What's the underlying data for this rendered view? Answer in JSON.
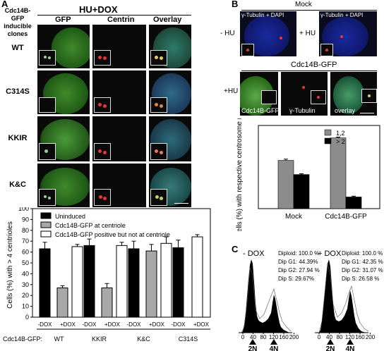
{
  "panelA": {
    "label": "A",
    "title": "HU+DOX",
    "row_header": "Cdc14B-GFP inducible clones",
    "col_headers": [
      "GFP",
      "Centrin",
      "Overlay"
    ],
    "rows": [
      "WT",
      "C314S",
      "KKIR",
      "K&C"
    ]
  },
  "panelB": {
    "label": "B",
    "mock_title": "Mock",
    "mock_stain": "γ-Tubulin + DAPI",
    "minus_hu": "- HU",
    "plus_hu": "+ HU",
    "gfp_title": "Cdc14B-GFP",
    "plus_hu2": "+HU",
    "captions": [
      "Cdc14B-GFP",
      "γ-Tubulin",
      "overlay"
    ]
  },
  "panelC": {
    "label": "C",
    "minus_dox": "- DOX",
    "plus_dox": "+ DOX",
    "stats_minus": [
      "Diploid: 100.0 %",
      "Dip G1: 44.39%",
      "Dip G2: 27.94 %",
      "Dip S: 29.67%"
    ],
    "stats_plus": [
      "Diploid: 100.0 %",
      "Dip G1: 42.35 %",
      "Dip G2: 31.07 %",
      "Dip S: 26.58 %"
    ],
    "ticks": [
      "0",
      "40",
      "80",
      "120",
      "160",
      "200"
    ],
    "marks": [
      "2N",
      "4N"
    ]
  },
  "chart_data": [
    {
      "type": "bar",
      "id": "centriole-chart",
      "ylabel": "Cells (%) with > 4 centrioles",
      "ylim": [
        0,
        100
      ],
      "yticks": [
        0,
        10,
        20,
        30,
        40,
        50,
        60,
        70,
        80,
        90,
        100
      ],
      "xlabel_prefix": "Cdc14B-GFP:",
      "groups": [
        "WT",
        "KKIR",
        "K&C",
        "C314S"
      ],
      "conditions": [
        "-DOX",
        "+DOX"
      ],
      "legend": [
        "Uninduced",
        "Cdc14B-GFP at centriole",
        "Cdc14B-GFP positive but not at centriole"
      ],
      "colors": [
        "#000000",
        "#a8a8a8",
        "#ffffff"
      ],
      "bars": [
        {
          "group": "WT",
          "cond": "-DOX",
          "series": 0,
          "value": 63,
          "err": 6
        },
        {
          "group": "WT",
          "cond": "+DOX",
          "series": 1,
          "value": 27,
          "err": 2
        },
        {
          "group": "WT",
          "cond": "+DOX",
          "series": 2,
          "value": 65,
          "err": 2
        },
        {
          "group": "KKIR",
          "cond": "-DOX",
          "series": 0,
          "value": 66,
          "err": 6
        },
        {
          "group": "KKIR",
          "cond": "+DOX",
          "series": 1,
          "value": 27,
          "err": 4
        },
        {
          "group": "KKIR",
          "cond": "+DOX",
          "series": 2,
          "value": 66,
          "err": 3
        },
        {
          "group": "K&C",
          "cond": "-DOX",
          "series": 0,
          "value": 63,
          "err": 7
        },
        {
          "group": "K&C",
          "cond": "+DOX",
          "series": 1,
          "value": 61,
          "err": 6
        },
        {
          "group": "K&C",
          "cond": "+DOX",
          "series": 2,
          "value": 68,
          "err": 6
        },
        {
          "group": "C314S",
          "cond": "-DOX",
          "series": 0,
          "value": 64,
          "err": 7
        },
        {
          "group": "C314S",
          "cond": "+DOX",
          "series": 2,
          "value": 74,
          "err": 2
        }
      ]
    },
    {
      "type": "bar",
      "id": "centrosome-chart",
      "ylabel": "Cells (%) with respective centrosome number",
      "ylim": [
        0,
        100
      ],
      "categories": [
        "Mock",
        "Cdc14B-GFP"
      ],
      "series": [
        {
          "name": "1,2",
          "color": "#8c8c8c",
          "values": [
            58,
            85
          ],
          "err": [
            1.5,
            1
          ]
        },
        {
          "name": "> 2",
          "color": "#000000",
          "values": [
            41,
            14
          ],
          "err": [
            1,
            1
          ]
        }
      ]
    }
  ]
}
